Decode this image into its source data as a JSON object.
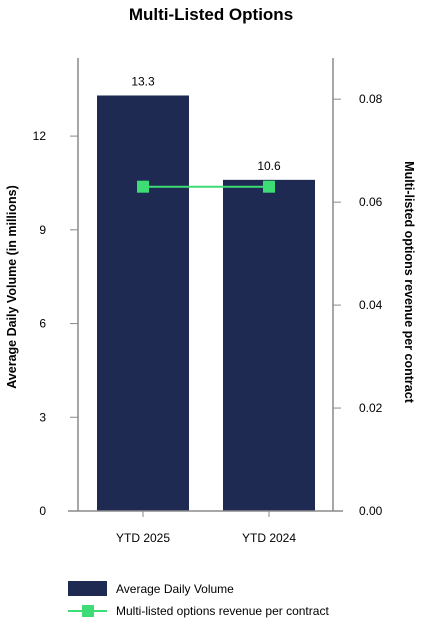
{
  "chart_data": {
    "type": "bar",
    "title": "Multi-Listed Options",
    "categories": [
      "YTD 2025",
      "YTD 2024"
    ],
    "series": [
      {
        "name": "Average Daily Volume",
        "type": "bar",
        "axis": "left",
        "values": [
          13.3,
          10.6
        ],
        "data_labels": [
          "13.3",
          "10.6"
        ],
        "color": "#1f2a52"
      },
      {
        "name": "Multi-listed options revenue per contract",
        "type": "line",
        "axis": "right",
        "values": [
          0.063,
          0.063
        ],
        "color": "#3ddc74"
      }
    ],
    "ylabel": "Average Daily Volume (in millions)",
    "y2label": "Multi-listed options revenue per contract",
    "ylim": [
      0,
      14.5
    ],
    "y2lim": [
      0,
      0.088
    ],
    "yticks": [
      0,
      3,
      6,
      9,
      12
    ],
    "ytick_labels": [
      "0",
      "3",
      "6",
      "9",
      "12"
    ],
    "y2ticks": [
      0,
      0.02,
      0.04,
      0.06,
      0.08
    ],
    "y2tick_labels": [
      "0.00",
      "0.02",
      "0.04",
      "0.06",
      "0.08"
    ],
    "grid": false,
    "legend": "bottom"
  }
}
